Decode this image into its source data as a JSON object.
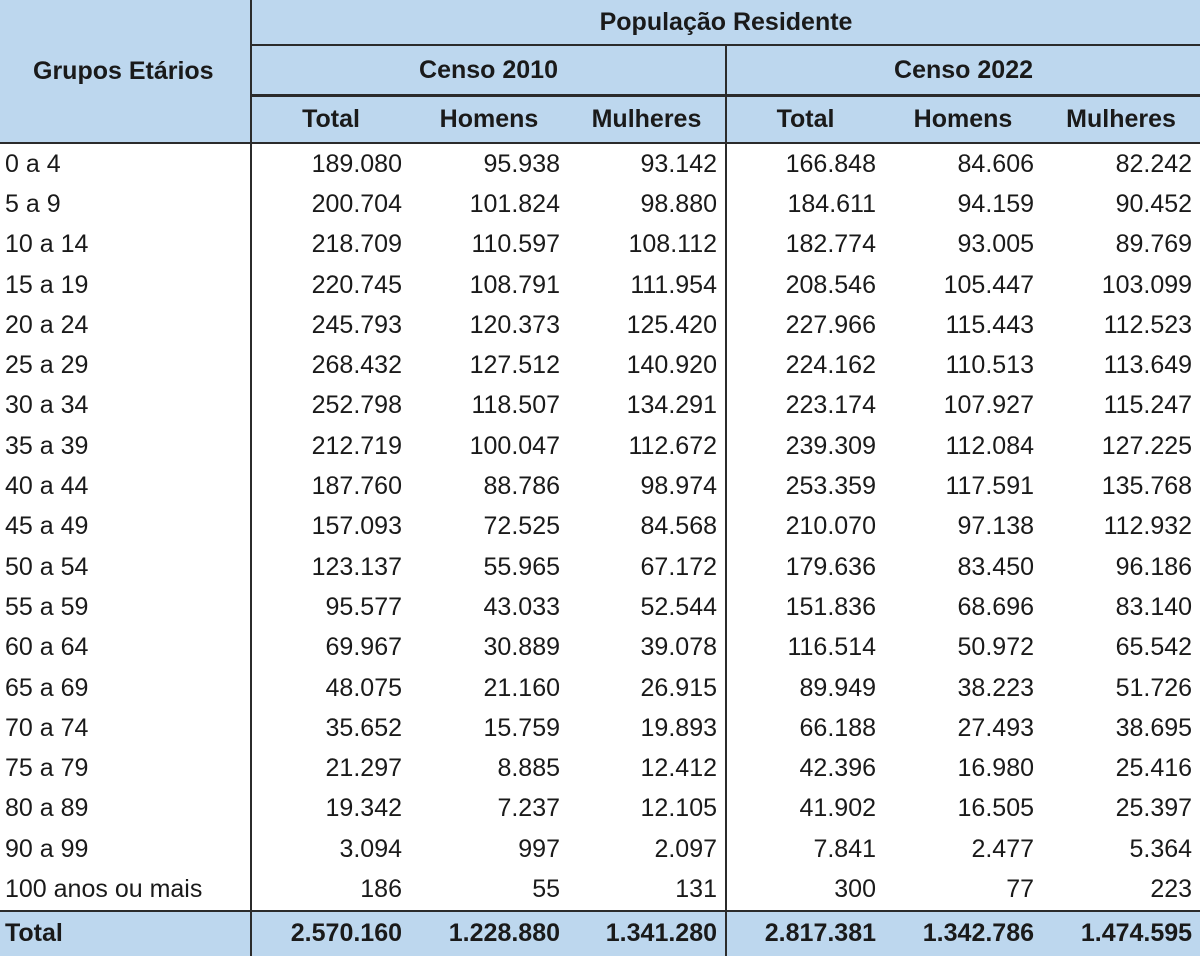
{
  "table": {
    "group_header": "Grupos Etários",
    "population_header": "População Residente",
    "censuses": [
      "Censo 2010",
      "Censo 2022"
    ],
    "subheaders": [
      "Total",
      "Homens",
      "Mulheres"
    ],
    "rows": [
      {
        "label": "0 a 4",
        "values": [
          "189.080",
          "95.938",
          "93.142",
          "166.848",
          "84.606",
          "82.242"
        ]
      },
      {
        "label": "5 a 9",
        "values": [
          "200.704",
          "101.824",
          "98.880",
          "184.611",
          "94.159",
          "90.452"
        ]
      },
      {
        "label": "10 a 14",
        "values": [
          "218.709",
          "110.597",
          "108.112",
          "182.774",
          "93.005",
          "89.769"
        ]
      },
      {
        "label": "15 a 19",
        "values": [
          "220.745",
          "108.791",
          "111.954",
          "208.546",
          "105.447",
          "103.099"
        ]
      },
      {
        "label": "20 a 24",
        "values": [
          "245.793",
          "120.373",
          "125.420",
          "227.966",
          "115.443",
          "112.523"
        ]
      },
      {
        "label": "25 a 29",
        "values": [
          "268.432",
          "127.512",
          "140.920",
          "224.162",
          "110.513",
          "113.649"
        ]
      },
      {
        "label": "30 a 34",
        "values": [
          "252.798",
          "118.507",
          "134.291",
          "223.174",
          "107.927",
          "115.247"
        ]
      },
      {
        "label": "35 a 39",
        "values": [
          "212.719",
          "100.047",
          "112.672",
          "239.309",
          "112.084",
          "127.225"
        ]
      },
      {
        "label": "40 a 44",
        "values": [
          "187.760",
          "88.786",
          "98.974",
          "253.359",
          "117.591",
          "135.768"
        ]
      },
      {
        "label": "45 a 49",
        "values": [
          "157.093",
          "72.525",
          "84.568",
          "210.070",
          "97.138",
          "112.932"
        ]
      },
      {
        "label": "50 a 54",
        "values": [
          "123.137",
          "55.965",
          "67.172",
          "179.636",
          "83.450",
          "96.186"
        ]
      },
      {
        "label": "55 a 59",
        "values": [
          "95.577",
          "43.033",
          "52.544",
          "151.836",
          "68.696",
          "83.140"
        ]
      },
      {
        "label": "60 a 64",
        "values": [
          "69.967",
          "30.889",
          "39.078",
          "116.514",
          "50.972",
          "65.542"
        ]
      },
      {
        "label": "65 a 69",
        "values": [
          "48.075",
          "21.160",
          "26.915",
          "89.949",
          "38.223",
          "51.726"
        ]
      },
      {
        "label": "70 a 74",
        "values": [
          "35.652",
          "15.759",
          "19.893",
          "66.188",
          "27.493",
          "38.695"
        ]
      },
      {
        "label": "75 a 79",
        "values": [
          "21.297",
          "8.885",
          "12.412",
          "42.396",
          "16.980",
          "25.416"
        ]
      },
      {
        "label": "80 a 89",
        "values": [
          "19.342",
          "7.237",
          "12.105",
          "41.902",
          "16.505",
          "25.397"
        ]
      },
      {
        "label": "90 a 99",
        "values": [
          "3.094",
          "997",
          "2.097",
          "7.841",
          "2.477",
          "5.364"
        ]
      },
      {
        "label": "100 anos ou mais",
        "values": [
          "186",
          "55",
          "131",
          "300",
          "77",
          "223"
        ]
      }
    ],
    "total": {
      "label": "Total",
      "values": [
        "2.570.160",
        "1.228.880",
        "1.341.280",
        "2.817.381",
        "1.342.786",
        "1.474.595"
      ]
    }
  }
}
